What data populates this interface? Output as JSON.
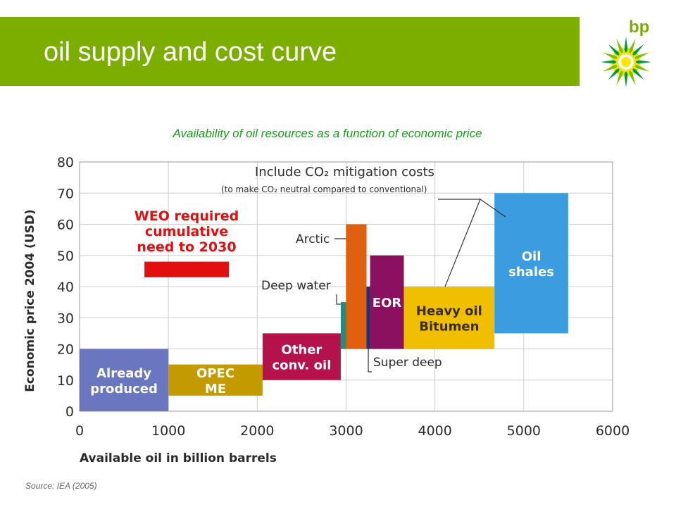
{
  "slide": {
    "title": "oil supply and cost curve",
    "logo_text": "bp",
    "source": "Source: IEA (2005)"
  },
  "colors": {
    "title_bar": "#7cae00",
    "subtitle": "#1a9a1a",
    "grid": "#cccccc",
    "axis_text": "#2b2b2b"
  },
  "chart_data": {
    "type": "bar",
    "title": "Availability of oil resources as a function of economic price",
    "xlabel": "Available oil in billion barrels",
    "ylabel": "Economic price 2004 (USD)",
    "xlim": [
      0,
      6000
    ],
    "ylim": [
      0,
      80
    ],
    "xticks": [
      "0",
      "1000",
      "2000",
      "3000",
      "4000",
      "5000",
      "6000"
    ],
    "yticks": [
      "0",
      "10",
      "20",
      "30",
      "40",
      "50",
      "60",
      "70",
      "80"
    ],
    "grid": true,
    "bars": [
      {
        "lines": [
          "Already",
          "produced"
        ],
        "x0": 0,
        "x1": 1000,
        "y0": 0,
        "y1": 20,
        "color": "#6a77c0",
        "text_color": "#ffffff"
      },
      {
        "lines": [
          "OPEC",
          "ME"
        ],
        "x0": 1000,
        "x1": 2060,
        "y0": 5,
        "y1": 15,
        "color": "#c39a00",
        "text_color": "#ffffff"
      },
      {
        "lines": [
          "Other",
          "conv. oil"
        ],
        "x0": 2060,
        "x1": 2940,
        "y0": 10,
        "y1": 25,
        "color": "#b5114b",
        "text_color": "#ffffff"
      },
      {
        "lines": [],
        "x0": 2940,
        "x1": 3000,
        "y0": 20,
        "y1": 35,
        "color": "#2a8a7a",
        "text_color": "#ffffff"
      },
      {
        "lines": [],
        "x0": 3000,
        "x1": 3230,
        "y0": 20,
        "y1": 60,
        "color": "#e06010",
        "text_color": "#ffffff"
      },
      {
        "lines": [],
        "x0": 3230,
        "x1": 3270,
        "y0": 20,
        "y1": 40,
        "color": "#1e2f7a",
        "text_color": "#ffffff"
      },
      {
        "lines": [
          "EOR"
        ],
        "x0": 3270,
        "x1": 3650,
        "y0": 20,
        "y1": 50,
        "color": "#8b1060",
        "text_color": "#ffffff"
      },
      {
        "lines": [
          "Heavy oil",
          "Bitumen"
        ],
        "x0": 3650,
        "x1": 4670,
        "y0": 20,
        "y1": 40,
        "color": "#f0c000",
        "text_color": "#3a2a00"
      },
      {
        "lines": [
          "Oil",
          "shales"
        ],
        "x0": 4670,
        "x1": 5500,
        "y0": 25,
        "y1": 70,
        "color": "#3b9de0",
        "text_color": "#ffffff"
      }
    ],
    "weo_marker": {
      "lines": [
        "WEO required",
        "cumulative",
        "need to 2030"
      ],
      "x0": 730,
      "x1": 1680,
      "y0": 43,
      "y1": 48,
      "color": "#e01010"
    },
    "annotations": {
      "co2_line1": "Include CO₂ mitigation costs",
      "co2_line2": "(to make CO₂ neutral compared to conventional)",
      "arctic": "Arctic",
      "deep_water": "Deep water",
      "super_deep": "Super deep"
    }
  }
}
